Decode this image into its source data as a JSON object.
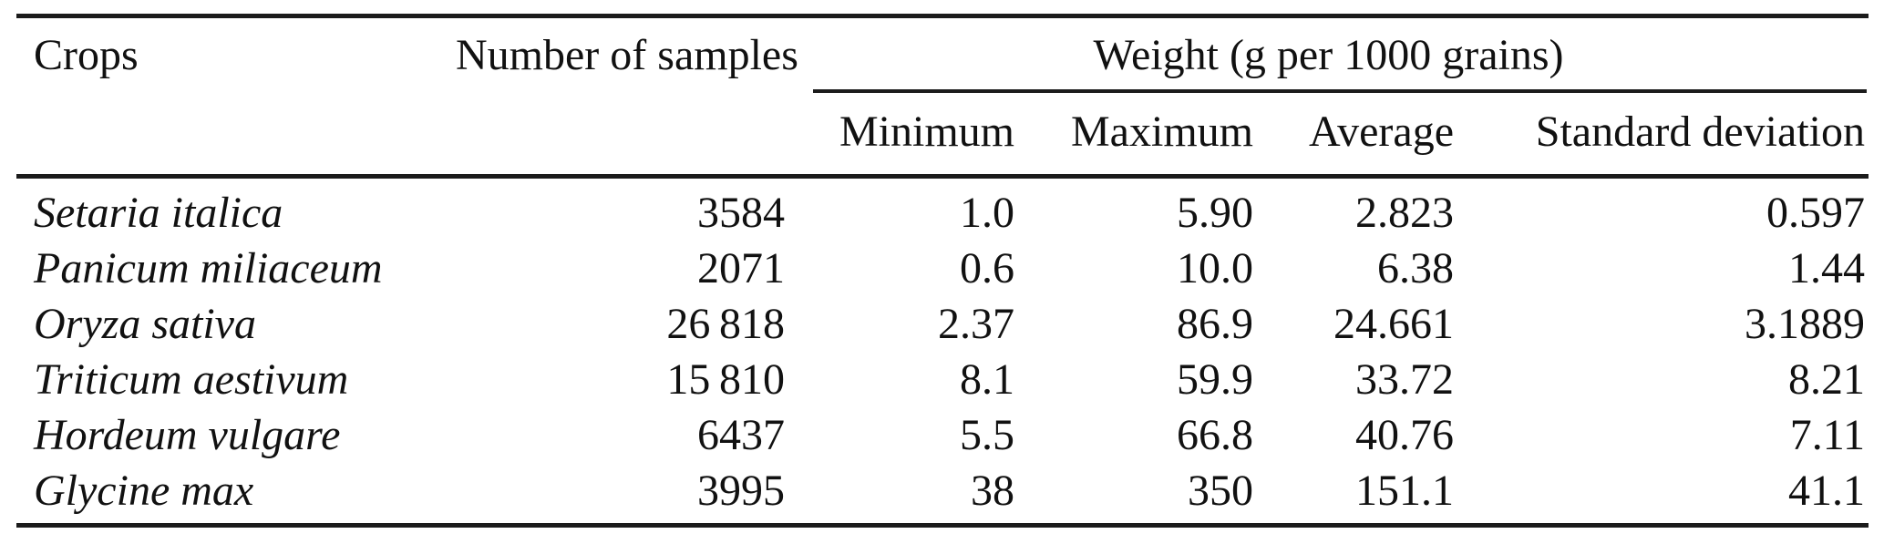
{
  "table": {
    "header": {
      "crops": "Crops",
      "samples": "Number of samples",
      "weight_group": "Weight (g per 1000 grains)",
      "minimum": "Minimum",
      "maximum": "Maximum",
      "average": "Average",
      "stddev": "Standard deviation"
    },
    "rows": [
      {
        "crop": "Setaria italica",
        "samples": "3584",
        "min": "1.0",
        "max": "5.90",
        "avg": "2.823",
        "sd": "0.597"
      },
      {
        "crop": "Panicum miliaceum",
        "samples": "2071",
        "min": "0.6",
        "max": "10.0",
        "avg": "6.38",
        "sd": "1.44"
      },
      {
        "crop": "Oryza sativa",
        "samples": "26 818",
        "min": "2.37",
        "max": "86.9",
        "avg": "24.661",
        "sd": "3.1889"
      },
      {
        "crop": "Triticum aestivum",
        "samples": "15 810",
        "min": "8.1",
        "max": "59.9",
        "avg": "33.72",
        "sd": "8.21"
      },
      {
        "crop": "Hordeum vulgare",
        "samples": "6437",
        "min": "5.5",
        "max": "66.8",
        "avg": "40.76",
        "sd": "7.11"
      },
      {
        "crop": "Glycine max",
        "samples": "3995",
        "min": "38",
        "max": "350",
        "avg": "151.1",
        "sd": "41.1"
      }
    ]
  },
  "colors": {
    "text": "#111111",
    "rule": "#1b1b1b",
    "background": "#ffffff"
  }
}
